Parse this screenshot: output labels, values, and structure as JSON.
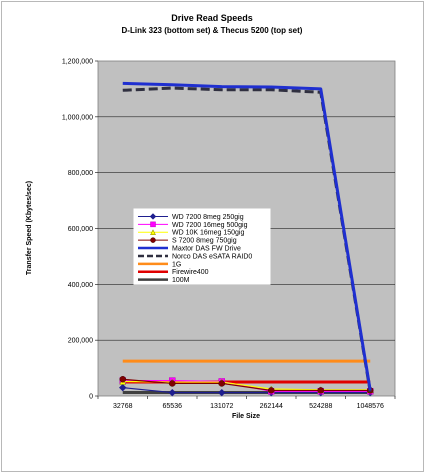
{
  "chart_data": {
    "type": "line",
    "title": "Drive Read Speeds",
    "subtitle": "D-Link 323 (bottom set) & Thecus 5200 (top set)",
    "xlabel": "File Size",
    "ylabel": "Transfer Speed (Kbytes/sec)",
    "categories": [
      "32768",
      "65536",
      "131072",
      "262144",
      "524288",
      "1048576"
    ],
    "ylim": [
      0,
      1200000
    ],
    "yticks": [
      0,
      200000,
      400000,
      600000,
      800000,
      1000000,
      1200000
    ],
    "ytick_labels": [
      "0",
      "200,000",
      "400,000",
      "600,000",
      "800,000",
      "1,000,000",
      "1,200,000"
    ],
    "grid": "horizontal",
    "legend_position": "left-middle",
    "plot_background": "#c0c0c0",
    "series": [
      {
        "name": "WD 7200 8meg 250gig",
        "values": [
          30000,
          12000,
          12000,
          12000,
          12000,
          12000
        ],
        "color": "#1f1f8f",
        "marker": "diamond"
      },
      {
        "name": "WD 7200 16meg 500gig",
        "values": [
          55000,
          55000,
          52000,
          17000,
          17000,
          17000
        ],
        "color": "#ff00ff",
        "marker": "square"
      },
      {
        "name": "WD 10K 16meg 150gig",
        "values": [
          52000,
          50000,
          50000,
          25000,
          22000,
          22000
        ],
        "color": "#ffff00",
        "marker": "triangle"
      },
      {
        "name": "S 7200 8meg 750gig",
        "values": [
          60000,
          45000,
          45000,
          20000,
          20000,
          20000
        ],
        "color": "#800000",
        "marker": "circle"
      },
      {
        "name": "Maxtor DAS FW Drive",
        "values": [
          1120000,
          1115000,
          1108000,
          1107000,
          1100000,
          20000
        ],
        "color": "#1f2fd0",
        "marker": "none"
      },
      {
        "name": "Norco DAS eSATA RAID0",
        "values": [
          1095000,
          1103000,
          1097000,
          1097000,
          1088000,
          15000
        ],
        "color": "#303040",
        "marker": "none",
        "dashed": true
      },
      {
        "name": "1G",
        "values": [
          125000,
          125000,
          125000,
          125000,
          125000,
          125000
        ],
        "color": "#ff8c1a",
        "marker": "none"
      },
      {
        "name": "Firewire400",
        "values": [
          50000,
          50000,
          50000,
          50000,
          50000,
          50000
        ],
        "color": "#e00000",
        "marker": "none"
      },
      {
        "name": "100M",
        "values": [
          12500,
          12500,
          12500,
          12500,
          12500,
          12500
        ],
        "color": "#404040",
        "marker": "none"
      }
    ]
  }
}
